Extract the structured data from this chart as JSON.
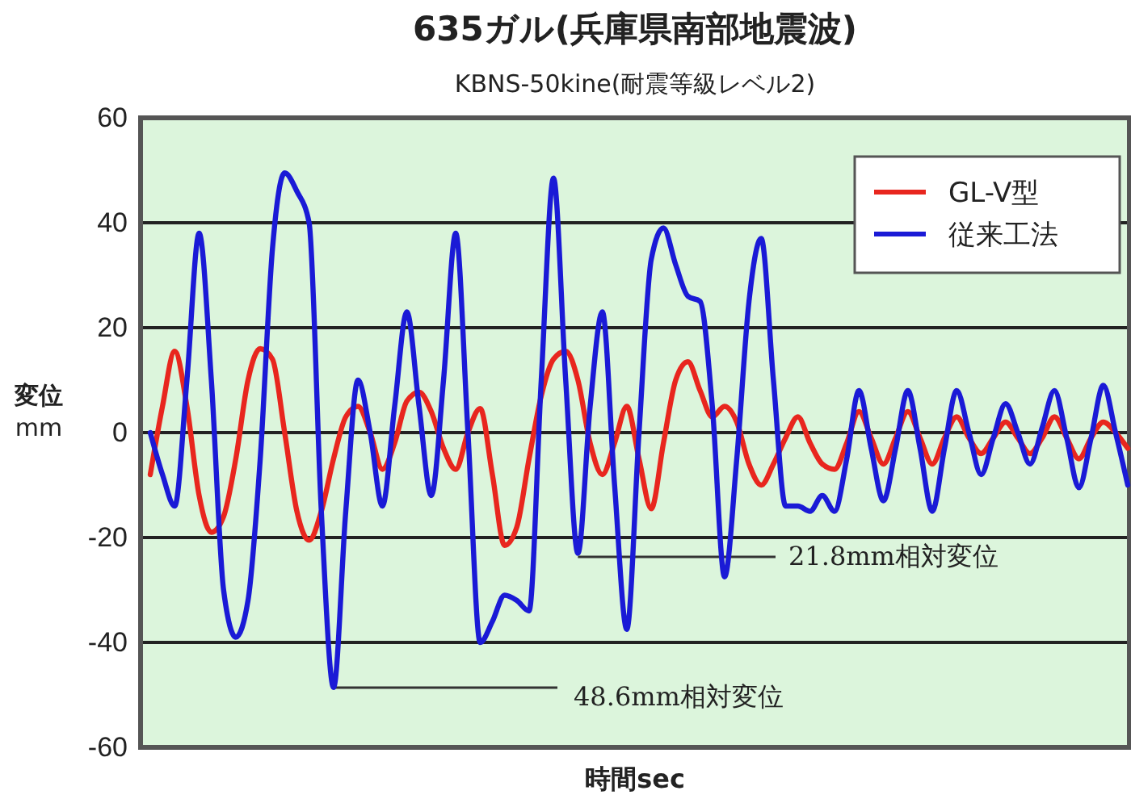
{
  "chart_data": {
    "type": "line",
    "title": "635ガル(兵庫県南部地震波)",
    "subtitle": "KBNS-50kine(耐震等級レベル2)",
    "xlabel": "時間sec",
    "ylabel": "変位\nmm",
    "categories": [
      null,
      null,
      null,
      null,
      null,
      null,
      null,
      null,
      null,
      null,
      null,
      null,
      null,
      null,
      null,
      null,
      null,
      null,
      null,
      null,
      null,
      null,
      null,
      null,
      null,
      null,
      null,
      null,
      null,
      null,
      null,
      null,
      null,
      null,
      null,
      null,
      null,
      null,
      null,
      null,
      null,
      null,
      null,
      null,
      null,
      null,
      null,
      null,
      null,
      null,
      null,
      null,
      null,
      null,
      null,
      null,
      null,
      null,
      null,
      null,
      null,
      null,
      null,
      null,
      null,
      null,
      null,
      null,
      null,
      null,
      null,
      null,
      null,
      null,
      null,
      null,
      null,
      null,
      null,
      null,
      null
    ],
    "series": [
      {
        "name": "GL-V型",
        "color": "#e8261e",
        "values": [
          -8,
          5,
          15.5,
          5,
          -12,
          -19,
          -16,
          -5,
          10,
          16,
          14,
          0,
          -15,
          -20.5,
          -15,
          -5,
          3,
          5,
          0,
          -7,
          -2,
          6,
          7.7,
          4,
          -3,
          -7,
          0,
          4.6,
          -8,
          -21.5,
          -18,
          -5,
          7,
          14,
          15.5,
          10,
          -2,
          -8,
          -2,
          5,
          -5,
          -14.5,
          -2,
          10,
          13.5,
          8,
          3,
          5,
          2,
          -6,
          -10,
          -6,
          -1,
          3,
          -2,
          -6,
          -7,
          -2,
          4,
          -1,
          -6,
          -1,
          4,
          -1,
          -6,
          -1,
          3,
          -1,
          -4,
          -1,
          2,
          -1,
          -4,
          -1,
          3,
          -1,
          -5,
          -1,
          2,
          0,
          -3
        ]
      },
      {
        "name": "従来工法",
        "color": "#1a1ad6",
        "values": [
          0,
          -8,
          -14,
          10,
          38,
          10,
          -30,
          -39,
          -32,
          -5,
          35,
          49.5,
          46,
          40,
          -15,
          -48.6,
          -15,
          10,
          0,
          -14,
          5,
          23,
          5,
          -12,
          10,
          38,
          0,
          -40,
          -36,
          -31,
          -32,
          -34,
          10,
          48.5,
          10,
          -23,
          5,
          23,
          -10,
          -37.5,
          0,
          33,
          39,
          32,
          26,
          25,
          5,
          -27.5,
          -5,
          25,
          37,
          10,
          -14,
          -14,
          -15,
          -12,
          -15,
          -5,
          8,
          -3,
          -13,
          -3,
          8,
          -3,
          -15,
          -3,
          8,
          0,
          -8,
          -1,
          5.5,
          0,
          -6,
          1,
          8,
          -1,
          -10.5,
          -1,
          9,
          0,
          -10
        ]
      }
    ],
    "ylim": [
      -60,
      60
    ],
    "yticks": [
      -60,
      -40,
      -20,
      0,
      20,
      40,
      60
    ],
    "grid": "y",
    "legend": "top right",
    "line_style": "solid",
    "marker": "none",
    "annotations": [
      "21.8mm相対変位",
      "48.6mm相対変位"
    ]
  }
}
